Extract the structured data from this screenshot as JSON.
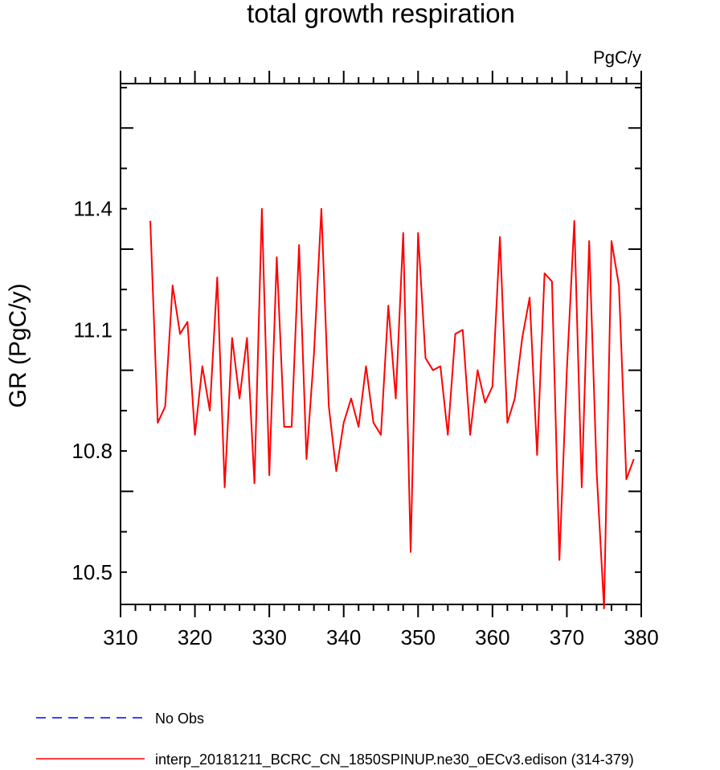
{
  "chart_data": {
    "type": "line",
    "title": "total growth respiration",
    "units": "PgC/y",
    "ylabel": "GR  (PgC/y)",
    "xlabel": "",
    "xlim": [
      310,
      380
    ],
    "ylim": [
      10.42,
      11.71
    ],
    "xticks": [
      310,
      320,
      330,
      340,
      350,
      360,
      370,
      380
    ],
    "yticks": [
      10.5,
      10.8,
      11.1,
      11.4
    ],
    "ytick_labels": [
      "10.5",
      "10.8",
      "11.1",
      "11.4"
    ],
    "grid": false,
    "legend": "bottom",
    "series": [
      {
        "name": "interp_20181211_BCRC_CN_1850SPINUP.ne30_oECv3.edison (314-379)",
        "color": "#ff0000",
        "dash": "solid",
        "x": [
          314,
          315,
          316,
          317,
          318,
          319,
          320,
          321,
          322,
          323,
          324,
          325,
          326,
          327,
          328,
          329,
          330,
          331,
          332,
          333,
          334,
          335,
          336,
          337,
          338,
          339,
          340,
          341,
          342,
          343,
          344,
          345,
          346,
          347,
          348,
          349,
          350,
          351,
          352,
          353,
          354,
          355,
          356,
          357,
          358,
          359,
          360,
          361,
          362,
          363,
          364,
          365,
          366,
          367,
          368,
          369,
          370,
          371,
          372,
          373,
          374,
          375,
          376,
          377,
          378,
          379
        ],
        "values": [
          11.37,
          10.87,
          10.91,
          11.21,
          11.09,
          11.12,
          10.84,
          11.01,
          10.9,
          11.23,
          10.71,
          11.08,
          10.93,
          11.08,
          10.72,
          11.4,
          10.74,
          11.28,
          10.86,
          10.86,
          11.31,
          10.78,
          11.04,
          11.4,
          10.91,
          10.75,
          10.87,
          10.93,
          10.86,
          11.01,
          10.87,
          10.84,
          11.16,
          10.93,
          11.34,
          10.55,
          11.34,
          11.03,
          11.0,
          11.01,
          10.84,
          11.09,
          11.1,
          10.84,
          11.0,
          10.92,
          10.96,
          11.33,
          10.87,
          10.93,
          11.08,
          11.18,
          10.79,
          11.24,
          11.22,
          10.53,
          11.0,
          11.37,
          10.71,
          11.32,
          10.75,
          10.41,
          11.32,
          11.21,
          10.73,
          10.78
        ]
      },
      {
        "name": "No Obs",
        "color": "#0000ff",
        "dash": "dashed",
        "x": [],
        "values": []
      }
    ]
  }
}
